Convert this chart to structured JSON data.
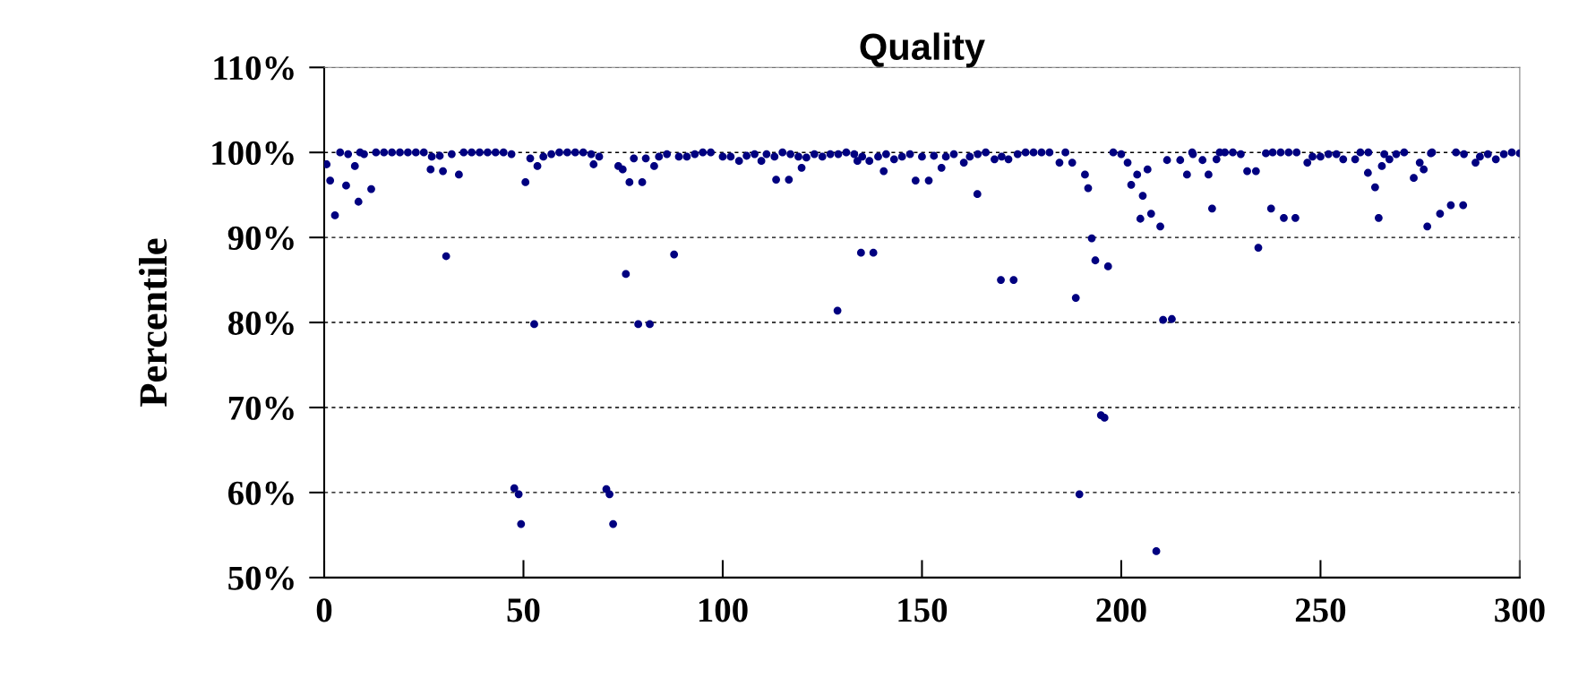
{
  "chart_data": {
    "type": "scatter",
    "title": "Quality",
    "ylabel": "Percentile",
    "xlim": [
      0,
      300
    ],
    "xticks": [
      0,
      50,
      100,
      150,
      200,
      250,
      300
    ],
    "ylim": [
      50,
      110
    ],
    "yticks": [
      {
        "value": 50,
        "label": "50%"
      },
      {
        "value": 60,
        "label": "60%"
      },
      {
        "value": 70,
        "label": "70%"
      },
      {
        "value": 80,
        "label": "80%"
      },
      {
        "value": 90,
        "label": "90%"
      },
      {
        "value": 100,
        "label": "100%"
      },
      {
        "value": 110,
        "label": "110%"
      }
    ],
    "grid": "y",
    "marker": "circle",
    "series": [
      {
        "color": "#000080",
        "x": [
          0.6,
          1.5,
          2.7,
          5.5,
          7.7,
          8.6,
          11.8,
          26.7,
          29.8,
          30.6,
          33.8,
          50.5,
          47.7,
          48.8,
          49.4,
          52.7,
          51.7,
          53.5,
          67.6,
          73.8,
          74.9,
          75.7,
          76.6,
          79.8,
          77.7,
          80.7,
          78.8,
          81.7,
          70.8,
          71.6,
          72.5,
          87.8,
          82.8,
          113.4,
          116.6,
          119.8,
          128.8,
          134.7,
          137.8,
          140.4,
          148.4,
          151.7,
          154.9,
          163.9,
          169.8,
          173.0,
          184.5,
          187.7,
          188.6,
          189.5,
          190.9,
          191.7,
          192.6,
          193.5,
          196.7,
          194.9,
          195.8,
          201.6,
          202.5,
          204.0,
          205.4,
          204.8,
          168.2,
          171.7,
          160.5,
          133.8,
          136.8,
          109.7,
          104.1,
          206.6,
          207.5,
          209.8,
          208.8,
          210.5,
          212.7,
          211.5,
          214.8,
          216.5,
          217.8,
          220.4,
          221.9,
          222.8,
          223.9,
          224.7,
          231.6,
          233.8,
          234.4,
          237.6,
          240.8,
          243.7,
          236.3,
          246.7,
          255.7,
          258.7,
          261.9,
          263.7,
          264.6,
          265.4,
          267.3,
          273.4,
          275.9,
          274.9,
          276.8,
          280.0,
          282.7,
          285.8,
          288.9,
          294.0,
          300.0,
          277.7,
          4,
          6,
          9,
          10,
          13,
          15,
          17,
          19,
          21,
          23,
          25,
          27,
          29,
          32,
          35,
          37,
          39,
          41,
          43,
          45,
          47,
          55,
          57,
          59,
          61,
          63,
          65,
          67,
          69,
          84,
          86,
          89,
          91,
          93,
          95,
          97,
          100,
          102,
          106,
          108,
          111,
          113,
          115,
          117,
          119,
          121,
          123,
          125,
          127,
          129,
          131,
          133,
          135,
          139,
          141,
          143,
          145,
          147,
          150,
          153,
          156,
          158,
          162,
          164,
          166,
          170,
          174,
          176,
          178,
          180,
          182,
          186,
          198,
          200,
          218,
          226,
          228,
          230,
          238,
          240,
          242,
          244,
          248,
          250,
          252,
          254,
          260,
          262,
          266,
          269,
          271,
          278,
          284,
          286,
          290,
          292,
          296,
          298
        ],
        "values": [
          98.6,
          96.7,
          92.6,
          96.1,
          98.4,
          94.2,
          95.7,
          98.0,
          97.8,
          87.8,
          97.4,
          96.5,
          60.5,
          59.8,
          56.3,
          79.8,
          99.3,
          98.4,
          98.6,
          98.4,
          98.0,
          85.7,
          96.5,
          96.5,
          99.3,
          99.3,
          79.8,
          79.8,
          60.4,
          59.8,
          56.3,
          88.0,
          98.4,
          96.8,
          96.8,
          98.2,
          81.4,
          88.2,
          88.2,
          97.8,
          96.7,
          96.7,
          98.2,
          95.1,
          85.0,
          85.0,
          98.8,
          98.8,
          82.9,
          59.8,
          97.4,
          95.8,
          89.9,
          87.3,
          86.6,
          69.1,
          68.8,
          98.8,
          96.2,
          97.4,
          94.9,
          92.2,
          99.2,
          99.2,
          98.8,
          99.0,
          99.0,
          99.0,
          99.0,
          98.0,
          92.8,
          91.3,
          53.1,
          80.3,
          80.4,
          99.1,
          99.1,
          97.4,
          100.0,
          99.1,
          97.4,
          93.4,
          99.2,
          100.0,
          97.8,
          97.8,
          88.8,
          93.4,
          92.3,
          92.3,
          99.9,
          98.8,
          99.2,
          99.2,
          97.6,
          95.9,
          92.3,
          98.4,
          99.2,
          97.0,
          98.0,
          98.8,
          91.3,
          92.8,
          93.8,
          93.8,
          98.8,
          99.2,
          99.9,
          99.9,
          100,
          99.8,
          100,
          99.8,
          100,
          100,
          100,
          100,
          100,
          100,
          100,
          99.5,
          99.6,
          99.8,
          100,
          100,
          100,
          100,
          100,
          100,
          99.8,
          99.5,
          99.8,
          100,
          100,
          100,
          100,
          99.8,
          99.5,
          99.5,
          99.8,
          99.5,
          99.5,
          99.8,
          100,
          100,
          99.5,
          99.5,
          99.6,
          99.8,
          99.8,
          99.5,
          100,
          99.8,
          99.5,
          99.4,
          99.8,
          99.5,
          99.8,
          99.8,
          100,
          99.8,
          99.5,
          99.5,
          99.8,
          99.2,
          99.5,
          99.8,
          99.5,
          99.6,
          99.5,
          99.8,
          99.5,
          99.8,
          100,
          99.5,
          99.8,
          100,
          100,
          100,
          100,
          100,
          100,
          99.8,
          99.8,
          100,
          100,
          99.8,
          100,
          100,
          100,
          100,
          99.5,
          99.5,
          99.8,
          99.8,
          100,
          100,
          99.8,
          99.8,
          100,
          100,
          100,
          99.8,
          99.5,
          99.8,
          99.8,
          100
        ]
      }
    ]
  }
}
